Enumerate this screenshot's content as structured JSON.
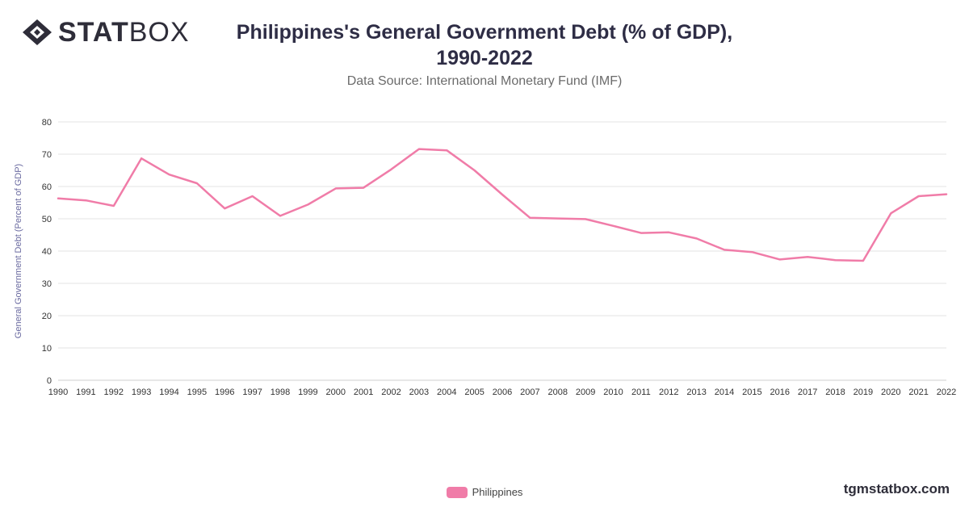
{
  "brand": {
    "logo_bold": "STAT",
    "logo_light": "BOX",
    "site": "tgmstatbox.com"
  },
  "colors": {
    "series": "#f07ca8",
    "grid": "#e3e3e3",
    "axis_text": "#333333",
    "ylabel": "#6a6aa0"
  },
  "chart_data": {
    "type": "line",
    "title": "Philippines's General Government Debt (% of GDP), 1990-2022",
    "title_lines": [
      "Philippines's General Government Debt (% of GDP),",
      "1990-2022"
    ],
    "subtitle": "Data Source: International Monetary Fund (IMF)",
    "xlabel": "",
    "ylabel": "General Government Debt (Percent of GDP)",
    "ylim": [
      0,
      80
    ],
    "yticks": [
      0,
      10,
      20,
      30,
      40,
      50,
      60,
      70,
      80
    ],
    "grid": true,
    "legend_position": "bottom",
    "categories": [
      "1990",
      "1991",
      "1992",
      "1993",
      "1994",
      "1995",
      "1996",
      "1997",
      "1998",
      "1999",
      "2000",
      "2001",
      "2002",
      "2003",
      "2004",
      "2005",
      "2006",
      "2007",
      "2008",
      "2009",
      "2010",
      "2011",
      "2012",
      "2013",
      "2014",
      "2015",
      "2016",
      "2017",
      "2018",
      "2019",
      "2020",
      "2021",
      "2022"
    ],
    "series": [
      {
        "name": "Philippines",
        "values": [
          56.3,
          55.7,
          54.0,
          68.7,
          63.7,
          61.0,
          53.2,
          57.0,
          50.9,
          54.4,
          59.4,
          59.6,
          65.3,
          71.6,
          71.2,
          65.0,
          57.5,
          50.3,
          50.1,
          49.9,
          47.8,
          45.6,
          45.8,
          43.9,
          40.4,
          39.7,
          37.4,
          38.2,
          37.2,
          37.0,
          51.7,
          57.0,
          57.6
        ]
      }
    ]
  }
}
